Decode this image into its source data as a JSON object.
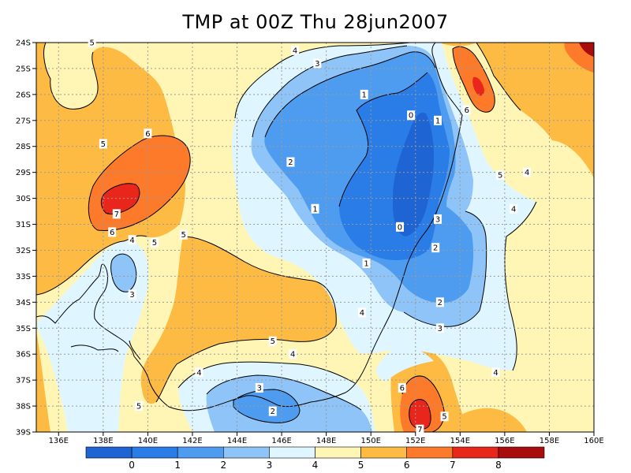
{
  "title": "TMP at 00Z Thu 28jun2007",
  "axes": {
    "x_ticks": [
      "136E",
      "138E",
      "140E",
      "142E",
      "144E",
      "146E",
      "148E",
      "150E",
      "152E",
      "154E",
      "156E",
      "158E",
      "160E"
    ],
    "y_ticks": [
      "24S",
      "25S",
      "26S",
      "27S",
      "28S",
      "29S",
      "30S",
      "31S",
      "32S",
      "33S",
      "34S",
      "35S",
      "36S",
      "37S",
      "38S",
      "39S"
    ]
  },
  "colorbar": {
    "colors": [
      "#1e64d2",
      "#2a7ce6",
      "#4e9cf0",
      "#8ec4f8",
      "#dff5ff",
      "#fff5b4",
      "#fdbb44",
      "#fc7a2a",
      "#e8261c",
      "#a80c0c"
    ],
    "labels": [
      "0",
      "1",
      "2",
      "3",
      "4",
      "5",
      "6",
      "7",
      "8"
    ]
  },
  "contour_labels": [
    {
      "text": "5",
      "lon": 137.5,
      "lat": 24.0
    },
    {
      "text": "4",
      "lon": 146.6,
      "lat": 24.3
    },
    {
      "text": "3",
      "lon": 147.6,
      "lat": 24.8
    },
    {
      "text": "1",
      "lon": 149.7,
      "lat": 26.0
    },
    {
      "text": "0",
      "lon": 151.8,
      "lat": 26.8
    },
    {
      "text": "1",
      "lon": 153.0,
      "lat": 27.0
    },
    {
      "text": "6",
      "lon": 154.3,
      "lat": 26.6
    },
    {
      "text": "5",
      "lon": 138.0,
      "lat": 27.9
    },
    {
      "text": "6",
      "lon": 140.0,
      "lat": 27.5
    },
    {
      "text": "2",
      "lon": 146.4,
      "lat": 28.6
    },
    {
      "text": "5",
      "lon": 155.8,
      "lat": 29.1
    },
    {
      "text": "4",
      "lon": 157.0,
      "lat": 29.0
    },
    {
      "text": "7",
      "lon": 138.6,
      "lat": 30.6
    },
    {
      "text": "1",
      "lon": 147.5,
      "lat": 30.4
    },
    {
      "text": "4",
      "lon": 156.4,
      "lat": 30.4
    },
    {
      "text": "3",
      "lon": 153.0,
      "lat": 30.8
    },
    {
      "text": "0",
      "lon": 151.3,
      "lat": 31.1
    },
    {
      "text": "6",
      "lon": 138.4,
      "lat": 31.3
    },
    {
      "text": "5",
      "lon": 141.6,
      "lat": 31.4
    },
    {
      "text": "4",
      "lon": 139.3,
      "lat": 31.6
    },
    {
      "text": "5",
      "lon": 140.3,
      "lat": 31.7
    },
    {
      "text": "2",
      "lon": 152.9,
      "lat": 31.9
    },
    {
      "text": "1",
      "lon": 149.8,
      "lat": 32.5
    },
    {
      "text": "3",
      "lon": 139.3,
      "lat": 33.7
    },
    {
      "text": "2",
      "lon": 153.1,
      "lat": 34.0
    },
    {
      "text": "4",
      "lon": 149.6,
      "lat": 34.4
    },
    {
      "text": "3",
      "lon": 153.1,
      "lat": 35.0
    },
    {
      "text": "5",
      "lon": 145.6,
      "lat": 35.5
    },
    {
      "text": "4",
      "lon": 146.5,
      "lat": 36.0
    },
    {
      "text": "4",
      "lon": 142.3,
      "lat": 36.7
    },
    {
      "text": "4",
      "lon": 155.6,
      "lat": 36.7
    },
    {
      "text": "3",
      "lon": 145.0,
      "lat": 37.3
    },
    {
      "text": "6",
      "lon": 151.4,
      "lat": 37.3
    },
    {
      "text": "5",
      "lon": 139.6,
      "lat": 38.0
    },
    {
      "text": "2",
      "lon": 145.6,
      "lat": 38.2
    },
    {
      "text": "5",
      "lon": 153.3,
      "lat": 38.4
    },
    {
      "text": "7",
      "lon": 152.2,
      "lat": 38.9
    }
  ]
}
